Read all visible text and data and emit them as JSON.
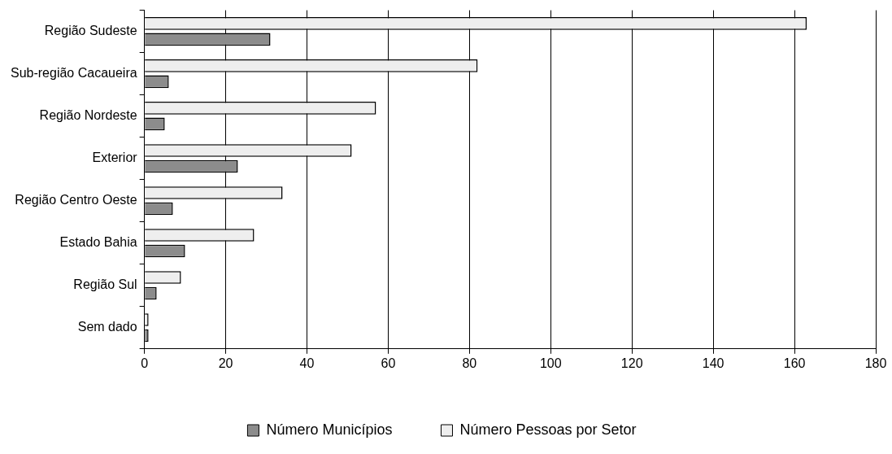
{
  "chart_data": {
    "type": "bar",
    "orientation": "horizontal",
    "categories": [
      "Região Sudeste",
      "Sub-região Cacaueira",
      "Região Nordeste",
      "Exterior",
      "Região Centro Oeste",
      "Estado Bahia",
      "Região Sul",
      "Sem dado"
    ],
    "series": [
      {
        "name": "Número Municípios",
        "color": "#8c8c8c",
        "values": [
          31,
          6,
          5,
          23,
          7,
          10,
          3,
          1
        ]
      },
      {
        "name": "Número Pessoas por Setor",
        "color": "#eeeeee",
        "values": [
          163,
          82,
          57,
          51,
          34,
          27,
          9,
          1
        ]
      }
    ],
    "xlim": [
      0,
      180
    ],
    "xticks": [
      0,
      20,
      40,
      60,
      80,
      100,
      120,
      140,
      160,
      180
    ],
    "grid": "x",
    "legend": "bottom"
  }
}
